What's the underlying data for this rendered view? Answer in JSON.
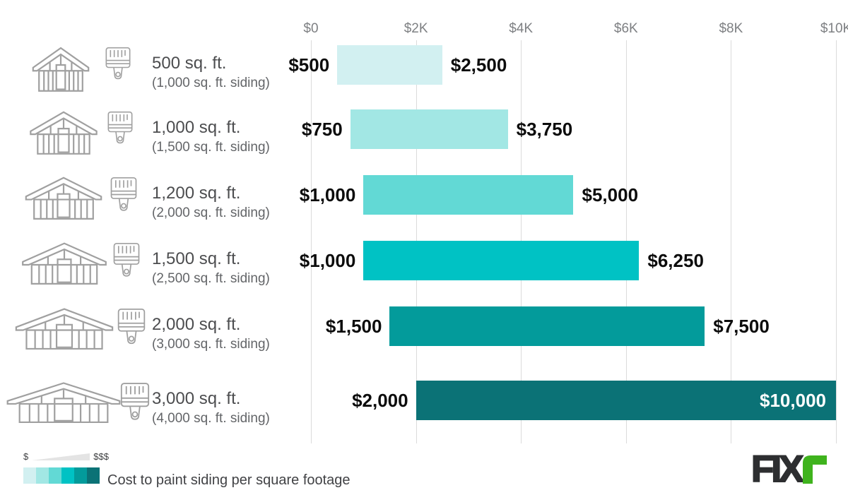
{
  "chart_data": {
    "type": "bar",
    "title": "Cost to paint siding per square footage",
    "orientation": "horizontal-range",
    "x_axis": {
      "ticks": [
        "$0",
        "$2K",
        "$4K",
        "$6K",
        "$8K",
        "$10K"
      ],
      "min": 0,
      "max": 10000,
      "grid": true
    },
    "rows": [
      {
        "house_sqft": "500 sq. ft.",
        "siding": "(1,000 sq. ft. siding)",
        "min": 500,
        "max": 2500,
        "min_label": "$500",
        "max_label": "$2,500",
        "color": "#d2f0f1"
      },
      {
        "house_sqft": "1,000 sq. ft.",
        "siding": "(1,500 sq. ft. siding)",
        "min": 750,
        "max": 3750,
        "min_label": "$750",
        "max_label": "$3,750",
        "color": "#a2e7e4"
      },
      {
        "house_sqft": "1,200 sq. ft.",
        "siding": "(2,000 sq. ft. siding)",
        "min": 1000,
        "max": 5000,
        "min_label": "$1,000",
        "max_label": "$5,000",
        "color": "#62d9d5"
      },
      {
        "house_sqft": "1,500 sq. ft.",
        "siding": "(2,500 sq. ft. siding)",
        "min": 1000,
        "max": 6250,
        "min_label": "$1,000",
        "max_label": "$6,250",
        "color": "#00c2c4"
      },
      {
        "house_sqft": "2,000 sq. ft.",
        "siding": "(3,000 sq. ft. siding)",
        "min": 1500,
        "max": 7500,
        "min_label": "$1,500",
        "max_label": "$7,500",
        "color": "#039b9b"
      },
      {
        "house_sqft": "3,000 sq. ft.",
        "siding": "(4,000 sq. ft. siding)",
        "min": 2000,
        "max": 10000,
        "min_label": "$2,000",
        "max_label": "$10,000",
        "color": "#0b7276"
      }
    ]
  },
  "legend": {
    "low": "$",
    "high": "$$$",
    "swatches": [
      "#d2f0f1",
      "#a2e7e4",
      "#62d9d5",
      "#00c2c4",
      "#039b9b",
      "#0b7276"
    ],
    "caption": "Cost to paint siding per square footage",
    "wedge_color": "#e4e4e4"
  },
  "logo": {
    "brand": "FIXr",
    "prefix": "FIX",
    "accent_color": "#3fb31d",
    "text_color": "#2d2e30"
  },
  "icons": {
    "house": "house-siding-icon",
    "brush": "paintbrush-icon"
  }
}
